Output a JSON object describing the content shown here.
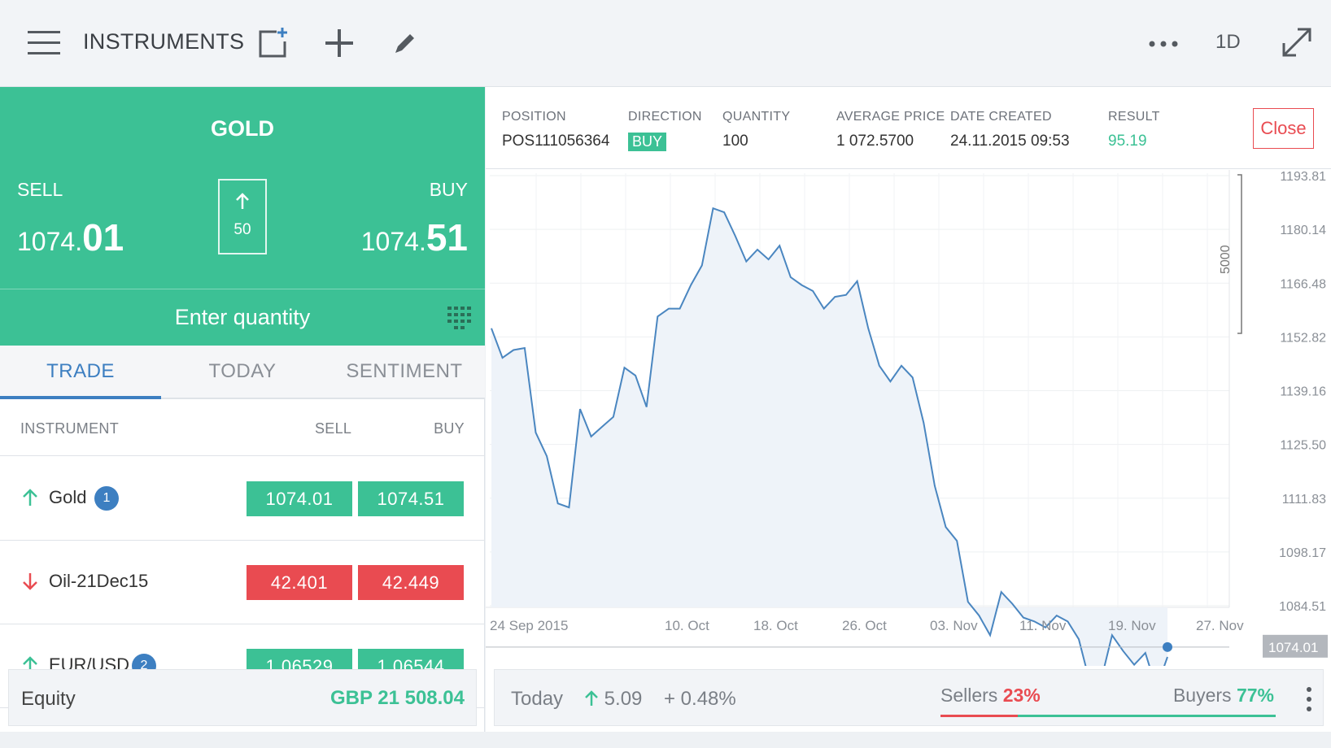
{
  "header": {
    "title": "INSTRUMENTS",
    "period": "1D",
    "icons": [
      "menu-icon",
      "add-watchlist-icon",
      "plus-icon",
      "pencil-icon",
      "more-icon",
      "expand-icon"
    ]
  },
  "ticket": {
    "instrument": "GOLD",
    "sell_label": "SELL",
    "buy_label": "BUY",
    "sell_price_main": "1074.",
    "sell_price_big": "01",
    "buy_price_main": "1074.",
    "buy_price_big": "51",
    "spread": "50",
    "quantity_placeholder": "Enter quantity"
  },
  "tabs": [
    {
      "label": "TRADE",
      "active": true
    },
    {
      "label": "TODAY",
      "active": false
    },
    {
      "label": "SENTIMENT",
      "active": false
    }
  ],
  "table": {
    "headers": {
      "instrument": "INSTRUMENT",
      "sell": "SELL",
      "buy": "BUY"
    },
    "rows": [
      {
        "name": "Gold",
        "direction": "up",
        "badge": "1",
        "sell": "1074.01",
        "buy": "1074.51",
        "color": "green"
      },
      {
        "name": "Oil-21Dec15",
        "direction": "down",
        "badge": "",
        "sell": "42.401",
        "buy": "42.449",
        "color": "red"
      },
      {
        "name": "EUR/USD",
        "direction": "up",
        "badge": "2",
        "sell": "1.06529",
        "buy": "1.06544",
        "color": "green"
      }
    ]
  },
  "equity": {
    "label": "Equity",
    "value": "GBP 21 508.04"
  },
  "position": {
    "position_label": "POSITION",
    "position_value": "POS111056364",
    "direction_label": "DIRECTION",
    "direction_value": "BUY",
    "quantity_label": "QUANTITY",
    "quantity_value": "100",
    "avg_price_label": "AVERAGE PRICE",
    "avg_price_value": "1 072.5700",
    "date_label": "DATE CREATED",
    "date_value": "24.11.2015 09:53",
    "result_label": "RESULT",
    "result_value": "95.19",
    "close_label": "Close"
  },
  "chart_data": {
    "type": "area",
    "y_ticks": [
      1193.81,
      1180.14,
      1166.48,
      1152.82,
      1139.16,
      1125.5,
      1111.83,
      1098.17,
      1084.51
    ],
    "x_tick_labels": [
      "24 Sep 2015",
      "10. Oct",
      "18. Oct",
      "26. Oct",
      "03. Nov",
      "11. Nov",
      "19. Nov",
      "27. Nov"
    ],
    "current_price": "1074.01",
    "scale_label": "5000",
    "values": [
      1155.0,
      1147.5,
      1149.5,
      1150.0,
      1128.5,
      1122.5,
      1110.5,
      1109.5,
      1134.5,
      1127.5,
      1130.0,
      1132.5,
      1145.0,
      1143.0,
      1135.0,
      1158.0,
      1160.0,
      1160.0,
      1166.0,
      1171.0,
      1185.5,
      1184.5,
      1178.5,
      1172.0,
      1175.0,
      1172.5,
      1176.0,
      1168.0,
      1166.0,
      1164.5,
      1160.0,
      1163.0,
      1163.5,
      1167.0,
      1155.0,
      1145.5,
      1141.5,
      1145.5,
      1142.5,
      1131.0,
      1115.0,
      1104.5,
      1101.0,
      1085.5,
      1082.0,
      1077.0,
      1088.0,
      1085.0,
      1081.5,
      1080.5,
      1079.0,
      1082.0,
      1080.5,
      1076.0,
      1065.0,
      1065.5,
      1077.0,
      1073.0,
      1069.5,
      1072.5,
      1063.5,
      1071.5
    ]
  },
  "bottom": {
    "today_label": "Today",
    "change_abs": "5.09",
    "change_pct": "+ 0.48%",
    "sellers_label": "Sellers",
    "sellers_pct": "23%",
    "sellers_value": 23,
    "buyers_label": "Buyers",
    "buyers_pct": "77%"
  },
  "colors": {
    "green": "#3cc195",
    "red": "#e94b51",
    "blue": "#3d7fc1",
    "line": "#4a86c0"
  }
}
